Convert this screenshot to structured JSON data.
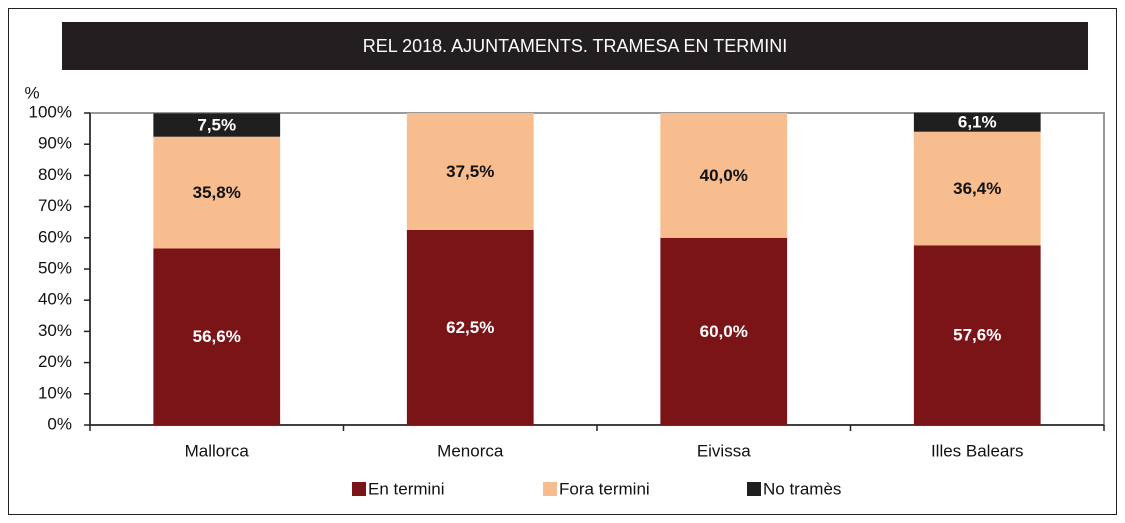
{
  "chart_data": {
    "type": "stacked_bar",
    "title": "REL 2018. AJUNTAMENTS. TRAMESA EN TERMINI",
    "y_label": "%",
    "categories": [
      "Mallorca",
      "Menorca",
      "Eivissa",
      "Illes Balears"
    ],
    "series": [
      {
        "name": "En termini",
        "color": "#7b1416",
        "values": [
          56.6,
          62.5,
          60.0,
          57.6
        ],
        "value_labels": [
          "56,6%",
          "62,5%",
          "60,0%",
          "57,6%"
        ]
      },
      {
        "name": "Fora termini",
        "color": "#f8bd8e",
        "values": [
          35.8,
          37.5,
          40.0,
          36.4
        ],
        "value_labels": [
          "35,8%",
          "37,5%",
          "40,0%",
          "36,4%"
        ]
      },
      {
        "name": "No tramès",
        "color": "#1f1f1f",
        "values": [
          7.5,
          0,
          0,
          6.1
        ],
        "value_labels": [
          "7,5%",
          null,
          null,
          "6,1%"
        ]
      }
    ],
    "ylim": [
      0,
      100
    ],
    "yticks": [
      {
        "value": 0,
        "label": "0%"
      },
      {
        "value": 10,
        "label": "10%"
      },
      {
        "value": 20,
        "label": "20%"
      },
      {
        "value": 30,
        "label": "30%"
      },
      {
        "value": 40,
        "label": "40%"
      },
      {
        "value": 50,
        "label": "50%"
      },
      {
        "value": 60,
        "label": "60%"
      },
      {
        "value": 70,
        "label": "70%"
      },
      {
        "value": 80,
        "label": "80%"
      },
      {
        "value": 90,
        "label": "90%"
      },
      {
        "value": 100,
        "label": "100%"
      }
    ],
    "grid": false,
    "legend": "bottom"
  }
}
